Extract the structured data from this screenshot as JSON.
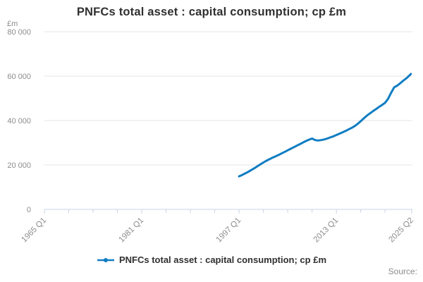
{
  "chart_data": {
    "type": "line",
    "title": "PNFCs total asset : capital consumption; cp £m",
    "unit_label": "£m",
    "x_range": [
      1965,
      2025.5
    ],
    "y_range": [
      0,
      80000
    ],
    "grid": true,
    "legend_position": "bottom",
    "y_ticks": [
      {
        "value": 0,
        "label": "0"
      },
      {
        "value": 20000,
        "label": "20 000"
      },
      {
        "value": 40000,
        "label": "40 000"
      },
      {
        "value": 60000,
        "label": "60 000"
      },
      {
        "value": 80000,
        "label": "80 000"
      }
    ],
    "x_ticks_major": [
      {
        "value": 1965.0,
        "label": "1965 Q1"
      },
      {
        "value": 1981.0,
        "label": "1981 Q1"
      },
      {
        "value": 1997.0,
        "label": "1997 Q1"
      },
      {
        "value": 2013.0,
        "label": "2013 Q1"
      },
      {
        "value": 2025.375,
        "label": "2025 Q2"
      }
    ],
    "x_ticks_minor": [
      1969,
      1973,
      1977,
      1985,
      1989,
      1993,
      2001,
      2005,
      2009,
      2017,
      2021
    ],
    "series": [
      {
        "name": "PNFCs total asset : capital consumption; cp £m",
        "color": "#0f7dc2",
        "x": [
          1997.0,
          1997.5,
          1998.0,
          1998.5,
          1999.0,
          1999.5,
          2000.0,
          2000.5,
          2001.0,
          2001.5,
          2002.0,
          2002.5,
          2003.0,
          2003.5,
          2004.0,
          2004.5,
          2005.0,
          2005.5,
          2006.0,
          2006.5,
          2007.0,
          2007.5,
          2008.0,
          2008.5,
          2009.0,
          2009.5,
          2010.0,
          2010.5,
          2011.0,
          2011.5,
          2012.0,
          2012.5,
          2013.0,
          2013.5,
          2014.0,
          2014.5,
          2015.0,
          2015.5,
          2016.0,
          2016.5,
          2017.0,
          2017.5,
          2018.0,
          2018.5,
          2019.0,
          2019.5,
          2020.0,
          2020.5,
          2021.0,
          2021.5,
          2022.0,
          2022.5,
          2023.0,
          2023.5,
          2024.0,
          2024.5,
          2025.0,
          2025.25
        ],
        "values": [
          14900,
          15500,
          16200,
          16900,
          17700,
          18500,
          19400,
          20300,
          21100,
          21900,
          22600,
          23300,
          23900,
          24500,
          25200,
          25900,
          26600,
          27300,
          28000,
          28700,
          29400,
          30100,
          30800,
          31400,
          31900,
          31200,
          31000,
          31200,
          31500,
          31900,
          32400,
          32900,
          33500,
          34100,
          34700,
          35300,
          36000,
          36700,
          37500,
          38500,
          39700,
          41000,
          42200,
          43200,
          44200,
          45100,
          46100,
          47000,
          48000,
          49800,
          52500,
          55000,
          55700,
          56800,
          58000,
          59000,
          60300,
          61000
        ]
      }
    ]
  },
  "footer": {
    "source_label": "Source:"
  },
  "colors": {
    "line": "#0f7dc2",
    "gridline": "#e6e6e6",
    "axis_line": "#c9d4e3",
    "axis_text": "#8c8c8c",
    "title_text": "#303030"
  }
}
